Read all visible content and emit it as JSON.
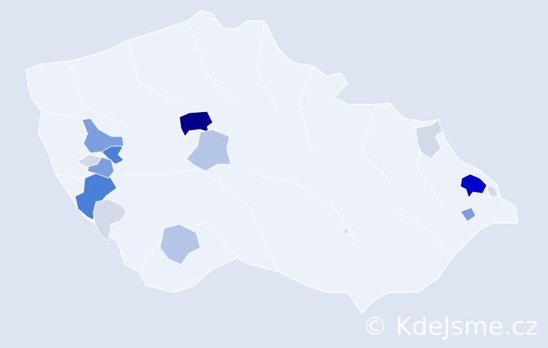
{
  "map": {
    "background_color": "#dce5f1",
    "land_color": "#edf1f9",
    "border_color": "#ffffff",
    "highlight_colors": {
      "darkest": "#00008b",
      "dark": "#0000cd",
      "medium": "#4a80d8",
      "medium_light": "#7d9fdf",
      "light": "#b4c5e6",
      "faint": "#d2daea"
    }
  },
  "watermark": {
    "text": "© KdeJsme.cz"
  }
}
